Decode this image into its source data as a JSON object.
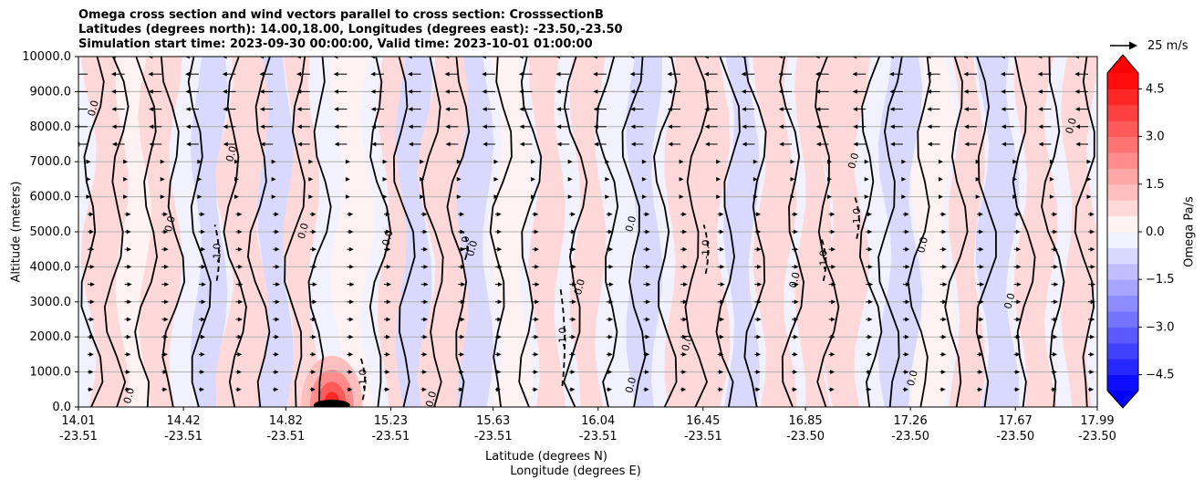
{
  "chart_data": {
    "type": "contour",
    "title_lines": [
      "Omega cross section and wind vectors parallel to cross section: CrosssectionB",
      "Latitudes (degrees north): 14.00,18.00, Longitudes (degrees east): -23.50,-23.50",
      "Simulation start time: 2023-09-30 00:00:00, Valid time: 2023-10-01 01:00:00"
    ],
    "ylabel": "Altitude (meters)",
    "xlabel_lines": [
      "Latitude (degrees N)",
      "Longitude (degrees E)"
    ],
    "ylim": [
      0,
      10000
    ],
    "y_ticks": [
      "0.0",
      "1000.0",
      "2000.0",
      "3000.0",
      "4000.0",
      "5000.0",
      "6000.0",
      "7000.0",
      "8000.0",
      "9000.0",
      "10000.0"
    ],
    "x_ticks": [
      {
        "lat": "14.01",
        "lon": "-23.51"
      },
      {
        "lat": "14.42",
        "lon": "-23.51"
      },
      {
        "lat": "14.82",
        "lon": "-23.51"
      },
      {
        "lat": "15.23",
        "lon": "-23.51"
      },
      {
        "lat": "15.63",
        "lon": "-23.51"
      },
      {
        "lat": "16.04",
        "lon": "-23.51"
      },
      {
        "lat": "16.45",
        "lon": "-23.51"
      },
      {
        "lat": "16.85",
        "lon": "-23.50"
      },
      {
        "lat": "17.26",
        "lon": "-23.50"
      },
      {
        "lat": "17.67",
        "lon": "-23.50"
      },
      {
        "lat": "17.99",
        "lon": "-23.50"
      }
    ],
    "grid": "horizontal",
    "colorbar": {
      "label": "Omega Pa/s",
      "range": [
        -5.0,
        5.0
      ],
      "step": 0.5,
      "ticks": [
        "4.5",
        "3.0",
        "1.5",
        "0.0",
        "−1.5",
        "−3.0",
        "−4.5"
      ],
      "tick_values": [
        4.5,
        3.0,
        1.5,
        0.0,
        -1.5,
        -3.0,
        -4.5
      ],
      "extend": "both",
      "colormap": "bwr",
      "negative_color": "#0000ff",
      "positive_color": "#ff0000"
    },
    "vector_key": {
      "label": "25 m/s"
    },
    "contour_labels": [
      "0.0",
      "-1.0"
    ],
    "features": {
      "strong_positive_max_near": {
        "lat": 15.0,
        "altitude": 400,
        "value": 4.0
      },
      "negative_dashed_contours_at": [
        {
          "lat": 14.55,
          "altitude_range": [
            3600,
            5200
          ],
          "value": -1.0
        },
        {
          "lat": 15.12,
          "altitude_range": [
            200,
            1400
          ],
          "value": -1.0
        },
        {
          "lat": 15.52,
          "altitude_range": [
            4200,
            5000
          ],
          "value": -1.0
        },
        {
          "lat": 15.9,
          "altitude_range": [
            600,
            3400
          ],
          "value": -1.0
        },
        {
          "lat": 16.46,
          "altitude_range": [
            3800,
            5200
          ],
          "value": -1.0
        },
        {
          "lat": 16.92,
          "altitude_range": [
            3600,
            4800
          ],
          "value": -1.0
        },
        {
          "lat": 17.05,
          "altitude_range": [
            4800,
            6000
          ],
          "value": -1.0
        }
      ]
    }
  }
}
